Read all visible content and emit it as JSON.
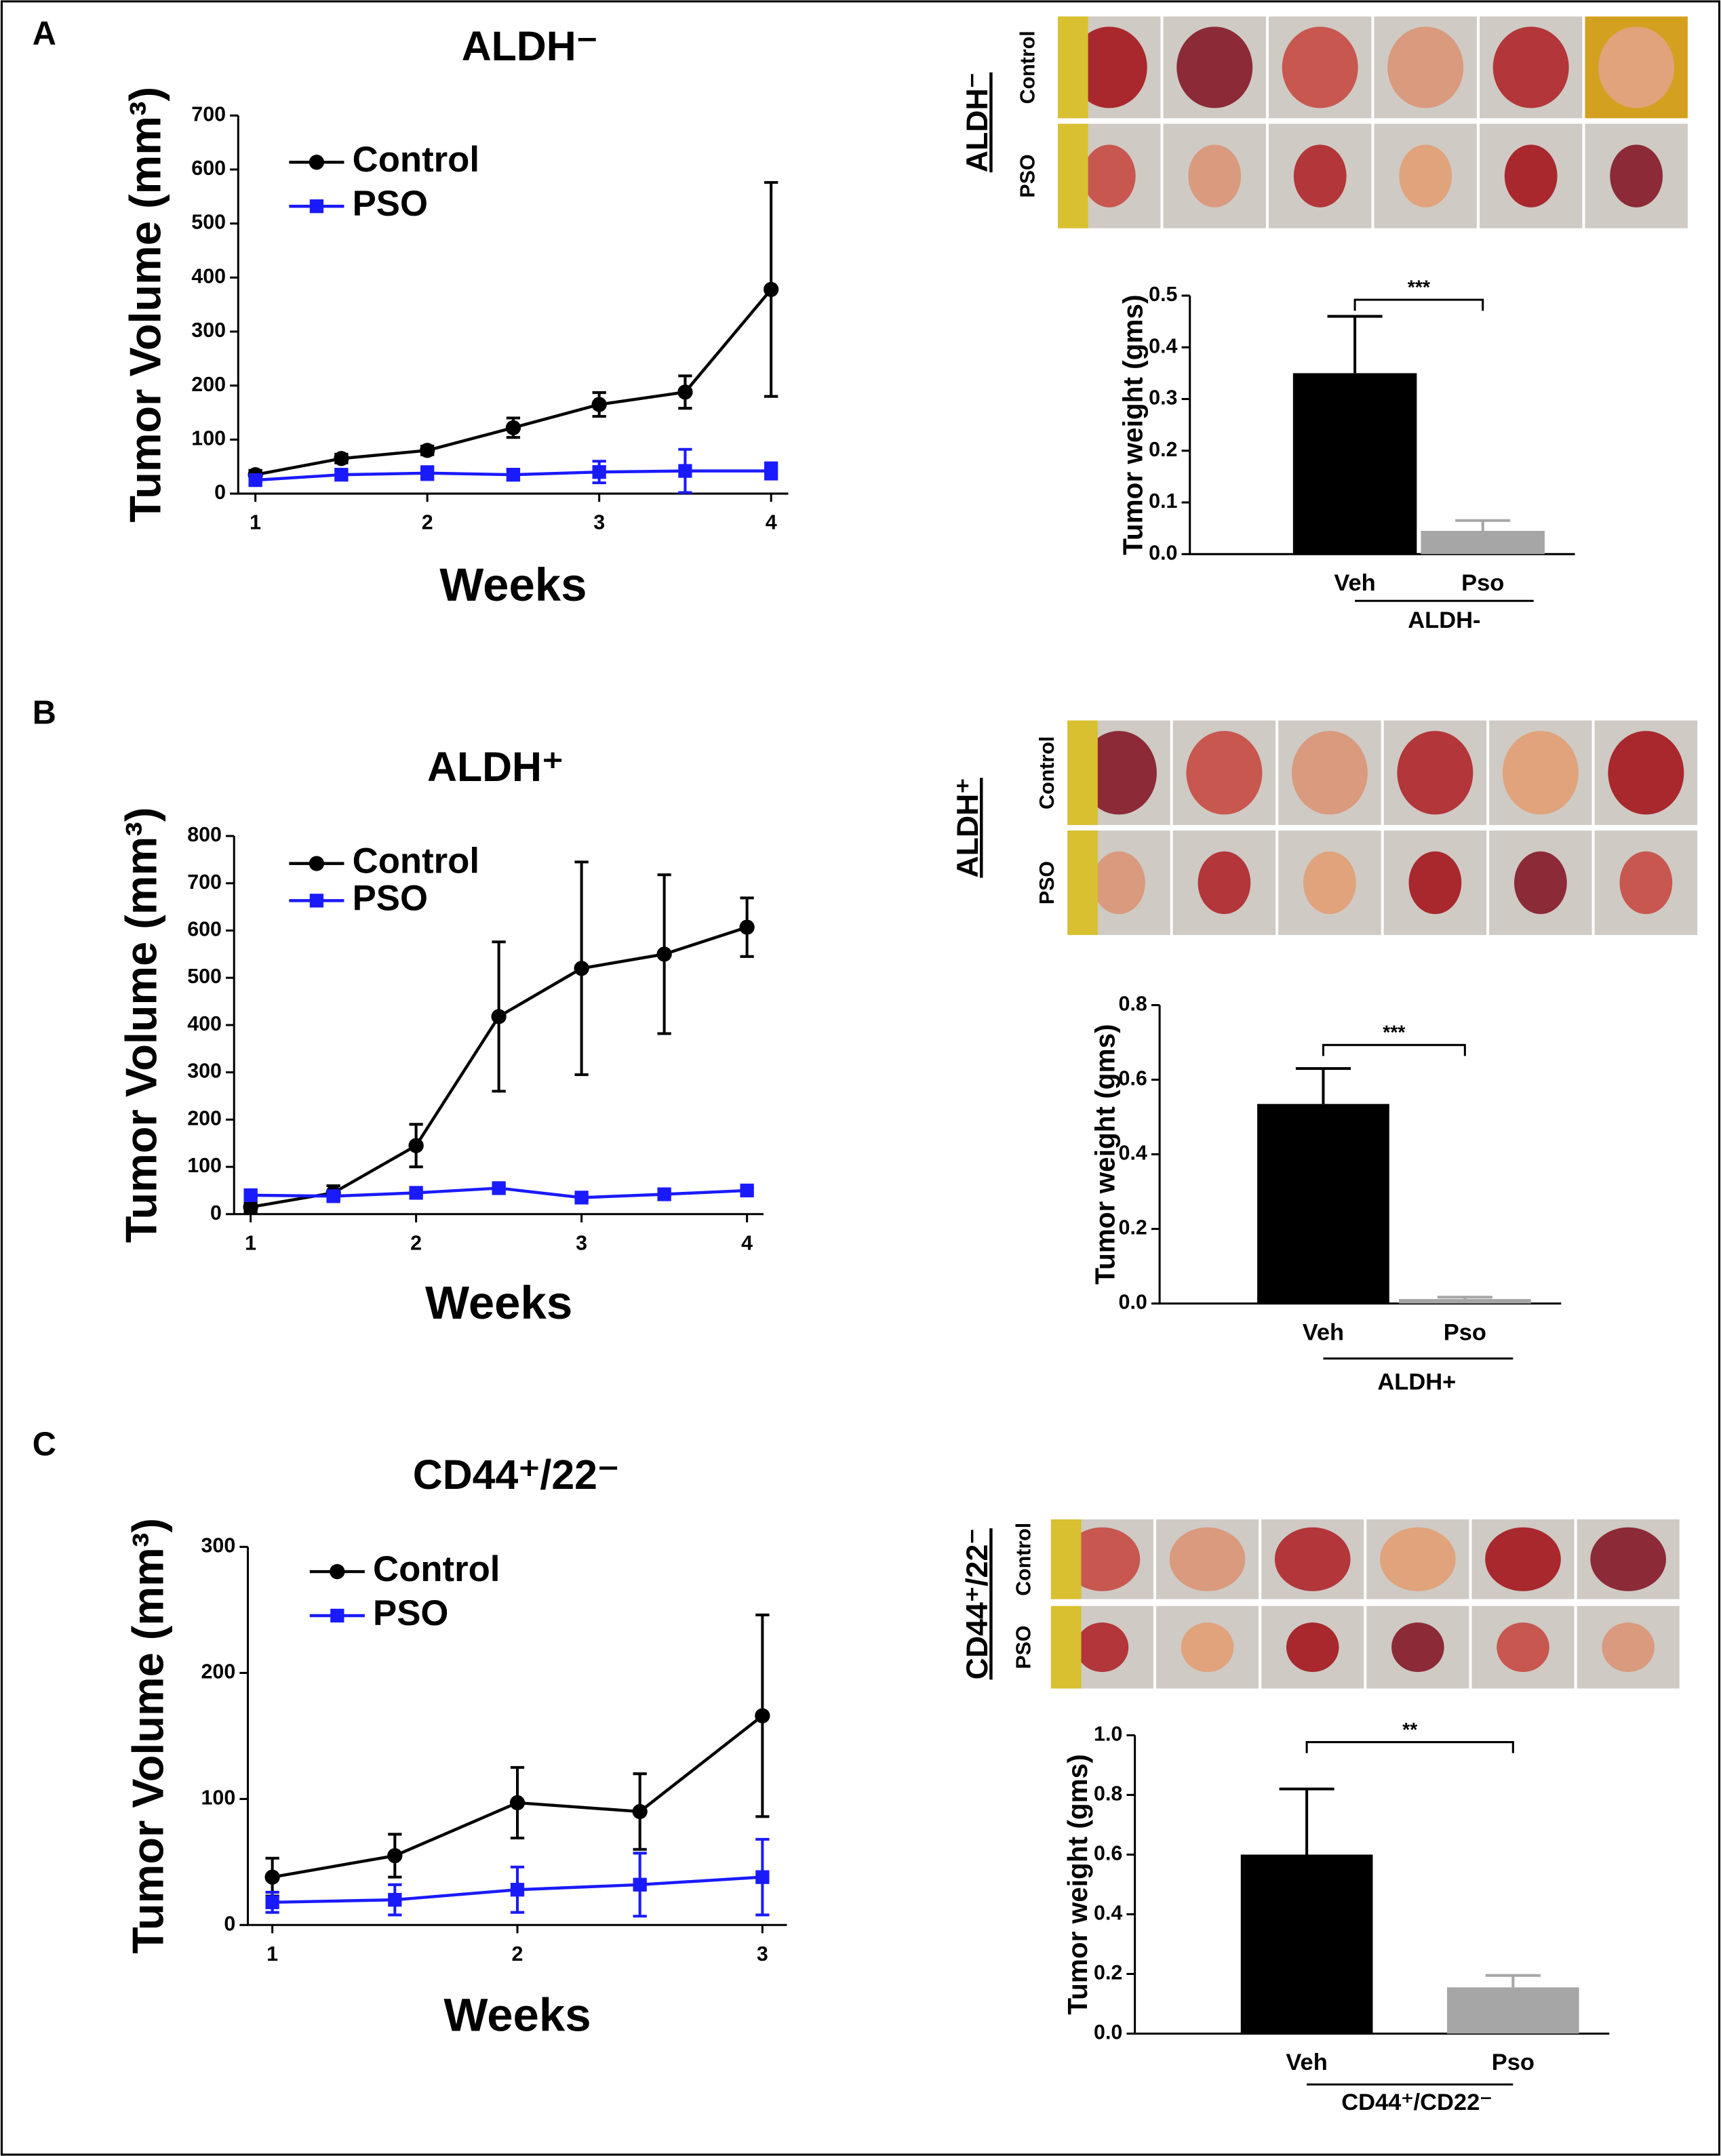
{
  "panel_labels": [
    "A",
    "B",
    "C"
  ],
  "photo_panels": [
    {
      "title": "ALDH⁻",
      "rows": [
        "Control",
        "PSO"
      ]
    },
    {
      "title": "ALDH⁺",
      "rows": [
        "Control",
        "PSO"
      ]
    },
    {
      "title": "CD44⁺/22⁻",
      "rows": [
        "Control",
        "PSO"
      ]
    }
  ],
  "chart_data": [
    {
      "type": "line",
      "title": "ALDH⁻",
      "xlabel": "Weeks",
      "ylabel": "Tumor Volume (mm³)",
      "x": [
        1,
        1.5,
        2,
        2.5,
        3,
        3.5,
        4
      ],
      "xlim": [
        0.9,
        4.1
      ],
      "xticks": [
        1,
        2,
        3,
        4
      ],
      "ylim": [
        0,
        700
      ],
      "yticks": [
        0,
        100,
        200,
        300,
        400,
        500,
        600,
        700
      ],
      "series": [
        {
          "name": "Control",
          "color": "#000000",
          "marker": "circle",
          "values": [
            35,
            65,
            80,
            122,
            165,
            188,
            378
          ],
          "errors": [
            8,
            8,
            8,
            18,
            22,
            30,
            198
          ]
        },
        {
          "name": "PSO",
          "color": "#1a1aff",
          "marker": "square",
          "values": [
            25,
            35,
            38,
            35,
            40,
            42,
            42
          ],
          "errors": [
            5,
            8,
            12,
            10,
            20,
            40,
            15
          ]
        }
      ]
    },
    {
      "type": "bar",
      "ylabel": "Tumor weight (gms)",
      "categories": [
        "Veh",
        "Pso"
      ],
      "values": [
        0.35,
        0.045
      ],
      "errors": [
        0.11,
        0.02
      ],
      "colors": [
        "#000000",
        "#a6a6a6"
      ],
      "ylim": [
        0,
        0.5
      ],
      "yticks": [
        {
          "value": 0,
          "label": "0.0"
        },
        0.1,
        0.2,
        0.3,
        0.4,
        0.5
      ],
      "annotation": "***",
      "group_label": "ALDH-"
    },
    {
      "type": "line",
      "title": "ALDH⁺",
      "xlabel": "Weeks",
      "ylabel": "Tumor Volume (mm³)",
      "x": [
        1,
        1.5,
        2,
        2.5,
        3,
        3.5,
        4
      ],
      "xlim": [
        0.9,
        4.1
      ],
      "xticks": [
        1,
        2,
        3,
        4
      ],
      "ylim": [
        0,
        800
      ],
      "yticks": [
        0,
        100,
        200,
        300,
        400,
        500,
        600,
        700,
        800
      ],
      "series": [
        {
          "name": "Control",
          "color": "#000000",
          "marker": "circle",
          "values": [
            15,
            45,
            145,
            418,
            520,
            550,
            607
          ],
          "errors": [
            10,
            15,
            45,
            158,
            225,
            168,
            62
          ]
        },
        {
          "name": "PSO",
          "color": "#1a1aff",
          "marker": "square",
          "values": [
            40,
            38,
            45,
            55,
            35,
            42,
            50
          ],
          "errors": [
            5,
            5,
            5,
            5,
            5,
            5,
            5
          ]
        }
      ]
    },
    {
      "type": "bar",
      "ylabel": "Tumor weight (gms)",
      "categories": [
        "Veh",
        "Pso"
      ],
      "values": [
        0.535,
        0.012
      ],
      "errors": [
        0.095,
        0.005
      ],
      "colors": [
        "#000000",
        "#a6a6a6"
      ],
      "ylim": [
        0,
        0.8
      ],
      "yticks": [
        {
          "value": 0,
          "label": "0.0"
        },
        0.2,
        0.4,
        0.6,
        0.8
      ],
      "annotation": "***",
      "group_label": "ALDH+"
    },
    {
      "type": "line",
      "title": "CD44⁺/22⁻",
      "xlabel": "Weeks",
      "ylabel": "Tumor Volume (mm³)",
      "x": [
        1,
        1.5,
        2,
        2.5,
        3
      ],
      "xlim": [
        0.9,
        3.1
      ],
      "xticks": [
        1,
        2,
        3
      ],
      "ylim": [
        0,
        300
      ],
      "yticks": [
        0,
        100,
        200,
        300
      ],
      "series": [
        {
          "name": "Control",
          "color": "#000000",
          "marker": "circle",
          "values": [
            38,
            55,
            97,
            90,
            166
          ],
          "errors": [
            15,
            17,
            28,
            30,
            80
          ]
        },
        {
          "name": "PSO",
          "color": "#1a1aff",
          "marker": "square",
          "values": [
            18,
            20,
            28,
            32,
            38
          ],
          "errors": [
            8,
            12,
            18,
            25,
            30
          ]
        }
      ]
    },
    {
      "type": "bar",
      "ylabel": "Tumor weight (gms)",
      "categories": [
        "Veh",
        "Pso"
      ],
      "values": [
        0.6,
        0.155
      ],
      "errors": [
        0.22,
        0.04
      ],
      "colors": [
        "#000000",
        "#a6a6a6"
      ],
      "ylim": [
        0,
        1.0
      ],
      "yticks": [
        {
          "value": 0,
          "label": "0.0"
        },
        0.2,
        0.4,
        0.6,
        0.8,
        {
          "value": 1,
          "label": "1.0"
        }
      ],
      "annotation": "**",
      "group_label": "CD44⁺/CD22⁻"
    }
  ]
}
